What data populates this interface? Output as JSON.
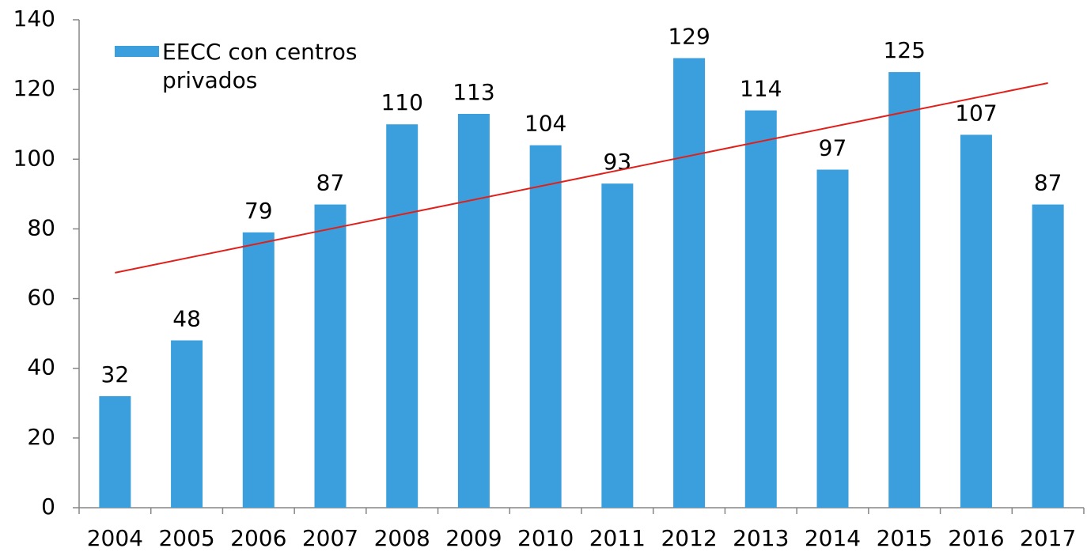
{
  "chart_data": {
    "type": "bar",
    "categories": [
      "2004",
      "2005",
      "2006",
      "2007",
      "2008",
      "2009",
      "2010",
      "2011",
      "2012",
      "2013",
      "2014",
      "2015",
      "2016",
      "2017"
    ],
    "series": [
      {
        "name": "EECC con centros privados",
        "color": "#3a9fdc",
        "values": [
          32,
          48,
          79,
          87,
          110,
          113,
          104,
          93,
          129,
          114,
          97,
          125,
          107,
          87
        ]
      }
    ],
    "ylim": [
      0,
      140
    ],
    "yticks": [
      0,
      20,
      40,
      60,
      80,
      100,
      120,
      140
    ],
    "trendline": true,
    "trendline_color": "#e0201b",
    "data_labels": true,
    "legend": "top-left"
  }
}
